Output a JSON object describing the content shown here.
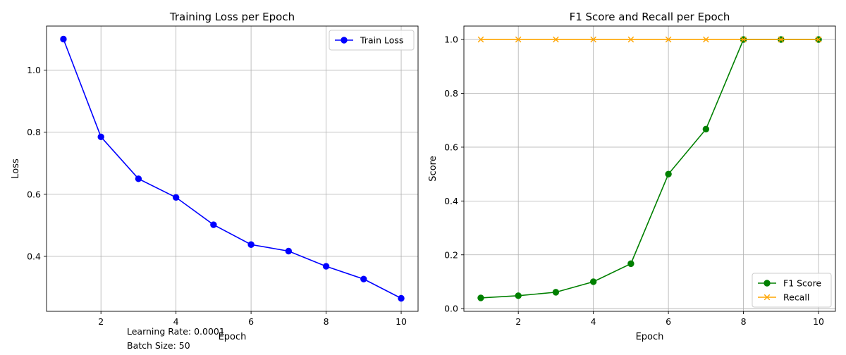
{
  "chart_data": [
    {
      "type": "line",
      "title": "Training Loss per Epoch",
      "xlabel": "Epoch",
      "ylabel": "Loss",
      "x": [
        1,
        2,
        3,
        4,
        5,
        6,
        7,
        8,
        9,
        10
      ],
      "series": [
        {
          "name": "Train Loss",
          "color": "#0000ff",
          "marker": "circle",
          "values": [
            1.1,
            0.785,
            0.65,
            0.59,
            0.502,
            0.438,
            0.417,
            0.368,
            0.327,
            0.265
          ]
        }
      ],
      "xlim": [
        0.55,
        10.45
      ],
      "ylim": [
        0.223,
        1.142
      ],
      "xticks": [
        2,
        4,
        6,
        8,
        10
      ],
      "yticks": [
        0.4,
        0.6,
        0.8,
        1.0
      ],
      "xtick_labels": [
        "2",
        "4",
        "6",
        "8",
        "10"
      ],
      "ytick_labels": [
        "0.4",
        "0.6",
        "0.8",
        "1.0"
      ],
      "grid": true,
      "legend": "top-right"
    },
    {
      "type": "line",
      "title": "F1 Score and Recall per Epoch",
      "xlabel": "Epoch",
      "ylabel": "Score",
      "x": [
        1,
        2,
        3,
        4,
        5,
        6,
        7,
        8,
        9,
        10
      ],
      "series": [
        {
          "name": "F1 Score",
          "color": "#008000",
          "marker": "circle",
          "values": [
            0.04,
            0.048,
            0.061,
            0.1,
            0.167,
            0.5,
            0.667,
            1.0,
            1.0,
            1.0
          ]
        },
        {
          "name": "Recall",
          "color": "#ffa500",
          "marker": "x",
          "values": [
            1.0,
            1.0,
            1.0,
            1.0,
            1.0,
            1.0,
            1.0,
            1.0,
            1.0,
            1.0
          ]
        }
      ],
      "xlim": [
        0.55,
        10.45
      ],
      "ylim": [
        -0.01,
        1.05
      ],
      "xticks": [
        2,
        4,
        6,
        8,
        10
      ],
      "yticks": [
        0.0,
        0.2,
        0.4,
        0.6,
        0.8,
        1.0
      ],
      "xtick_labels": [
        "2",
        "4",
        "6",
        "8",
        "10"
      ],
      "ytick_labels": [
        "0.0",
        "0.2",
        "0.4",
        "0.6",
        "0.8",
        "1.0"
      ],
      "grid": true,
      "legend": "bottom-right"
    }
  ],
  "annotations": {
    "learning_rate": "Learning Rate: 0.0001",
    "batch_size": "Batch Size: 50"
  },
  "colors": {
    "grid": "#b0b0b0",
    "axes": "#000000",
    "legend_border": "#cccccc"
  }
}
